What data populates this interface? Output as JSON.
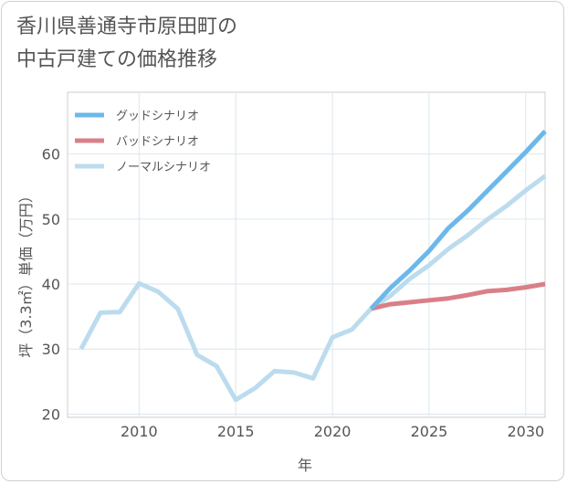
{
  "title_lines": [
    "香川県善通寺市原田町の",
    "中古戸建ての価格推移"
  ],
  "chart_data": {
    "type": "line",
    "title": "香川県善通寺市原田町の中古戸建ての価格推移",
    "xlabel": "年",
    "ylabel": "坪（3.3㎡）単価（万円）",
    "xlim": [
      2006.3,
      2031
    ],
    "ylim": [
      19.5,
      69.5
    ],
    "xticks": [
      2010,
      2015,
      2020,
      2025,
      2030
    ],
    "yticks": [
      20,
      30,
      40,
      50,
      60
    ],
    "grid": true,
    "legend_position": "top-left",
    "series": [
      {
        "name": "グッドシナリオ",
        "color": "#6cb8ea",
        "x": [
          2022,
          2023,
          2024,
          2025,
          2026,
          2027,
          2028,
          2029,
          2030,
          2031
        ],
        "values": [
          36.2,
          39.4,
          42.1,
          45.1,
          48.6,
          51.3,
          54.3,
          57.3,
          60.3,
          63.5
        ]
      },
      {
        "name": "バッドシナリオ",
        "color": "#d97f88",
        "x": [
          2022,
          2023,
          2024,
          2025,
          2026,
          2027,
          2028,
          2029,
          2030,
          2031
        ],
        "values": [
          36.2,
          36.9,
          37.2,
          37.5,
          37.8,
          38.3,
          38.9,
          39.1,
          39.5,
          40.0
        ]
      },
      {
        "name": "ノーマルシナリオ",
        "color": "#bcdcee",
        "x": [
          2007,
          2008,
          2009,
          2010,
          2011,
          2012,
          2013,
          2014,
          2015,
          2016,
          2017,
          2018,
          2019,
          2020,
          2021,
          2022,
          2023,
          2024,
          2025,
          2026,
          2027,
          2028,
          2029,
          2030,
          2031
        ],
        "values": [
          30.0,
          35.6,
          35.7,
          40.1,
          38.8,
          36.2,
          29.1,
          27.4,
          22.2,
          24.0,
          26.6,
          26.4,
          25.5,
          31.8,
          33.0,
          36.2,
          38.2,
          40.8,
          42.9,
          45.4,
          47.5,
          49.9,
          52.0,
          54.4,
          56.6
        ]
      }
    ]
  }
}
